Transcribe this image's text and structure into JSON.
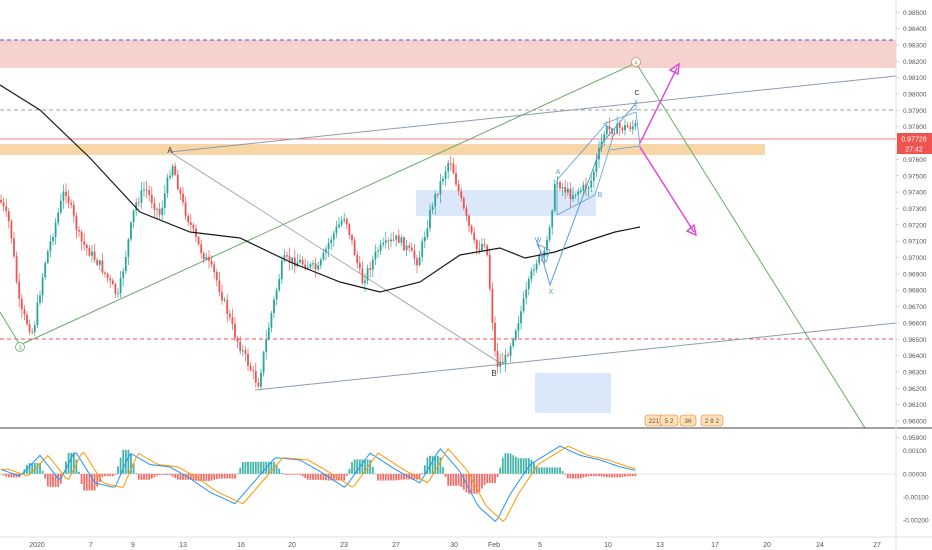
{
  "chart_data": [
    {
      "type": "candlestick",
      "title": "",
      "ylim": [
        0.95945,
        0.98575
      ],
      "y_ticks": [
        "0.98500",
        "0.98400",
        "0.98300",
        "0.98200",
        "0.98100",
        "0.98000",
        "0.97900",
        "0.97800",
        "0.97600",
        "0.97500",
        "0.97400",
        "0.97300",
        "0.97200",
        "0.97100",
        "0.97000",
        "0.96900",
        "0.96800",
        "0.96700",
        "0.96600",
        "0.96500",
        "0.96400",
        "0.96300",
        "0.96200",
        "0.96100",
        "0.96000",
        "0.95900"
      ],
      "x_ticks": [
        "2020",
        "7",
        "9",
        "13",
        "16",
        "20",
        "23",
        "27",
        "30",
        "Feb",
        "5",
        "10",
        "13",
        "17",
        "20",
        "24",
        "27"
      ],
      "last_price": "0.97728",
      "countdown": "27:42",
      "colors": {
        "up": "#26a69a",
        "down": "#ef5350",
        "ma": "#1a1a1a",
        "supply_zone": "#f4c7c3",
        "support_band": "#f6c88a",
        "demand_box": "#cfe0f7",
        "trendline": "#8e9cab",
        "channel": "#6aaa6a",
        "projection": "#e040e0",
        "wave": "#5b9bd5"
      },
      "wave_labels": {
        "A_jan": "A",
        "B_feb": "B",
        "minor_A": "A",
        "minor_B": "B",
        "minor_C": "C",
        "W": "W",
        "X": "X",
        "Y": "Y",
        "Z": "Z",
        "circle_3": "3",
        "circle_4": "4"
      },
      "horizontal_levels": [
        {
          "price": 0.98345,
          "style": "dashed",
          "color": "#5b4cd6"
        },
        {
          "price": 0.97895,
          "style": "dashed",
          "color": "#9e9e9e"
        },
        {
          "price": 0.97728,
          "style": "solid",
          "color": "#ef5350"
        },
        {
          "price": 0.96465,
          "style": "dashed",
          "color": "#ef5350"
        }
      ],
      "zones": {
        "supply": [
          0.98195,
          0.98345
        ],
        "support": [
          0.9762,
          0.9769
        ]
      },
      "event_badges": [
        "221",
        "5 2",
        "36",
        "2 8 2"
      ]
    },
    {
      "type": "line",
      "title": "",
      "ylim": [
        -0.0027,
        0.0019
      ],
      "y_ticks": [
        "0.00100",
        "0.00000",
        "-0.00100",
        "-0.00200"
      ],
      "series": [
        {
          "color": "#2196f3"
        },
        {
          "color": "#ff9800"
        }
      ]
    }
  ]
}
